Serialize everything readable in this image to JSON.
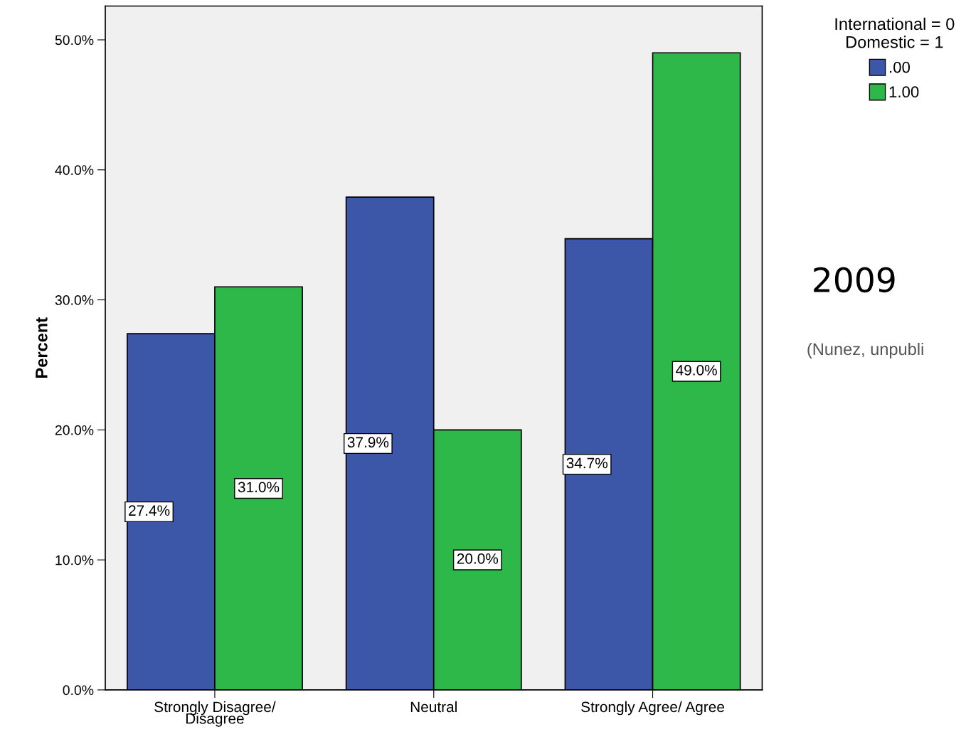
{
  "chart_data": {
    "type": "bar",
    "ylabel": "Percent",
    "legend_title": "International = 0\nDomestic = 1",
    "legend": "top right",
    "categories": [
      "Strongly Disagree/\nDisagree",
      "Neutral",
      "Strongly Agree/ Agree"
    ],
    "series": [
      {
        "name": ".00",
        "color": "#3c56a8",
        "values": [
          27.4,
          37.9,
          34.7
        ],
        "value_labels": [
          "27.4%",
          "37.9%",
          "34.7%"
        ]
      },
      {
        "name": "1.00",
        "color": "#2fb84a",
        "values": [
          31.0,
          20.0,
          49.0
        ],
        "value_labels": [
          "31.0%",
          "20.0%",
          "49.0%"
        ]
      }
    ],
    "ylim": [
      0,
      52.6
    ],
    "yticks": [
      {
        "value": 0,
        "label": "0.0%"
      },
      {
        "value": 10,
        "label": "10.0%"
      },
      {
        "value": 20,
        "label": "20.0%"
      },
      {
        "value": 30,
        "label": "30.0%"
      },
      {
        "value": 40,
        "label": "40.0%"
      },
      {
        "value": 50,
        "label": "50.0%"
      }
    ],
    "grid": false,
    "annotations": [
      "2009",
      "(Nunez, unpubli"
    ]
  }
}
